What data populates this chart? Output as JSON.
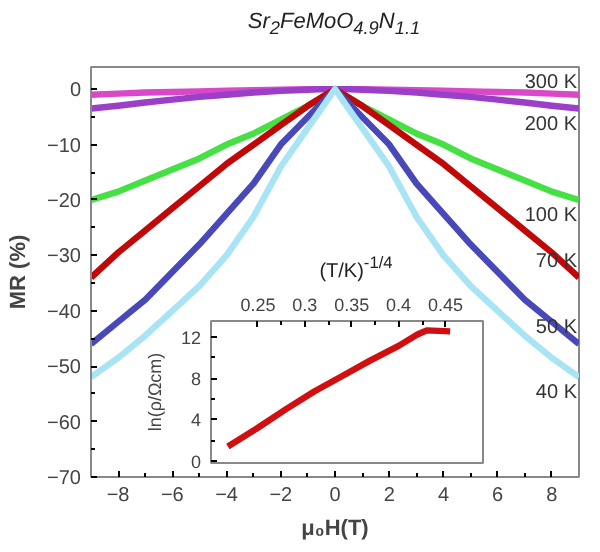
{
  "chart_data": [
    {
      "type": "line",
      "title": "Sr$_{2}$FeMoO$_{4.9}$N$_{1.1}$",
      "xlabel": "μ₀H(T)",
      "ylabel": "MR (%)",
      "xlim": [
        -9,
        9
      ],
      "xticks": [
        -8,
        -6,
        -4,
        -2,
        0,
        2,
        4,
        6,
        8
      ],
      "ylim": [
        -70,
        4
      ],
      "yticks": [
        -70,
        -60,
        -50,
        -40,
        -30,
        -20,
        -10,
        0
      ],
      "grid": false,
      "x": [
        -9,
        -8,
        -7,
        -6,
        -5,
        -4,
        -3,
        -2,
        -1,
        -0.5,
        0,
        0.5,
        1,
        2,
        3,
        4,
        5,
        6,
        7,
        8,
        9
      ],
      "series": [
        {
          "name": "300 K",
          "color": "#d848c8",
          "values": [
            -1,
            -0.8,
            -0.6,
            -0.5,
            -0.4,
            -0.3,
            -0.2,
            -0.1,
            0,
            0,
            0,
            0,
            0,
            -0.1,
            -0.2,
            -0.3,
            -0.4,
            -0.5,
            -0.6,
            -0.8,
            -1
          ]
        },
        {
          "name": "200 K",
          "color": "#9a40c8",
          "values": [
            -3.5,
            -3,
            -2.4,
            -1.9,
            -1.4,
            -1,
            -0.6,
            -0.3,
            -0.1,
            0,
            0,
            0,
            -0.1,
            -0.3,
            -0.6,
            -1,
            -1.4,
            -1.9,
            -2.4,
            -3,
            -3.5
          ]
        },
        {
          "name": "100 K",
          "color": "#44e044",
          "values": [
            -20,
            -18.5,
            -16.5,
            -14.5,
            -12.5,
            -10,
            -8,
            -5.5,
            -3,
            -1.5,
            0,
            -1.5,
            -3,
            -5.5,
            -8,
            -10,
            -12.5,
            -14.5,
            -16.5,
            -18.5,
            -20
          ]
        },
        {
          "name": "70 K",
          "color": "#c00808",
          "values": [
            -34,
            -29.5,
            -25.5,
            -21.5,
            -17.5,
            -13.5,
            -10,
            -6.5,
            -3,
            -1.5,
            0,
            -1.5,
            -3,
            -6.5,
            -10,
            -13.5,
            -17.5,
            -21.5,
            -25.5,
            -29.5,
            -34
          ]
        },
        {
          "name": "50 K",
          "color": "#4848b8",
          "values": [
            -46,
            -42,
            -38,
            -33,
            -28,
            -22.5,
            -17,
            -10,
            -5,
            -2.5,
            0,
            -2.5,
            -5,
            -10,
            -17,
            -22.5,
            -28,
            -33,
            -38,
            -42,
            -46
          ]
        },
        {
          "name": "40 K",
          "color": "#a8e4f4",
          "values": [
            -52,
            -48.5,
            -44.5,
            -40,
            -35.5,
            -30,
            -23,
            -14,
            -7,
            -3.5,
            0,
            -3.5,
            -7,
            -14,
            -23,
            -30,
            -35.5,
            -40,
            -44.5,
            -48.5,
            -52
          ]
        }
      ]
    },
    {
      "type": "line",
      "xlabel": "(T/K)$^{-1/4}$",
      "ylabel": "ln(ρ/Ωcm)",
      "xlim": [
        0.2,
        0.49
      ],
      "xticks": [
        0.25,
        0.3,
        0.35,
        0.4,
        0.45
      ],
      "ylim": [
        -0.2,
        13.5
      ],
      "yticks": [
        0,
        4,
        8,
        12
      ],
      "grid": false,
      "series": [
        {
          "color": "#d01010",
          "x": [
            0.218,
            0.25,
            0.28,
            0.31,
            0.34,
            0.37,
            0.4,
            0.42,
            0.43,
            0.455
          ],
          "values": [
            1.4,
            3.2,
            5,
            6.7,
            8.2,
            9.7,
            11.1,
            12.2,
            12.6,
            12.5
          ]
        }
      ]
    }
  ]
}
